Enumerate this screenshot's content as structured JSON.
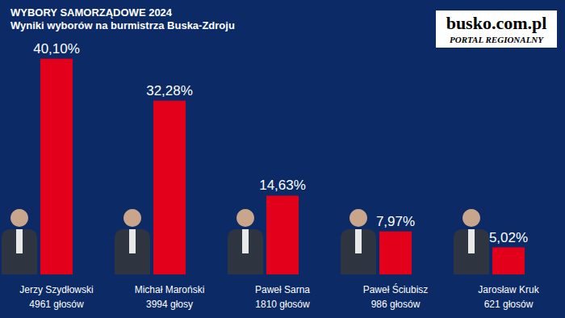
{
  "chart_data": {
    "type": "bar",
    "title": "WYBORY SAMORZĄDOWE 2024",
    "subtitle": "Wyniki wyborów na burmistrza Buska-Zdroju",
    "categories": [
      "Jerzy Szydłowski",
      "Michał Maroński",
      "Paweł Sarna",
      "Paweł Ściubisz",
      "Jarosław Kruk"
    ],
    "values": [
      40.1,
      32.28,
      14.63,
      7.97,
      5.02
    ],
    "value_labels": [
      "40,10%",
      "32,28%",
      "14,63%",
      "7,97%",
      "5,02%"
    ],
    "vote_labels": [
      "4961 głosów",
      "3994 głosy",
      "1810 głosów",
      "986 głosów",
      "621 głosów"
    ],
    "logo": {
      "name": "busko.com.pl",
      "tagline": "PORTAL REGIONALNY"
    },
    "color": "#e3001b",
    "ylim": [
      0,
      45
    ],
    "grid": false,
    "data_labels": true,
    "tick_labels": "x"
  }
}
